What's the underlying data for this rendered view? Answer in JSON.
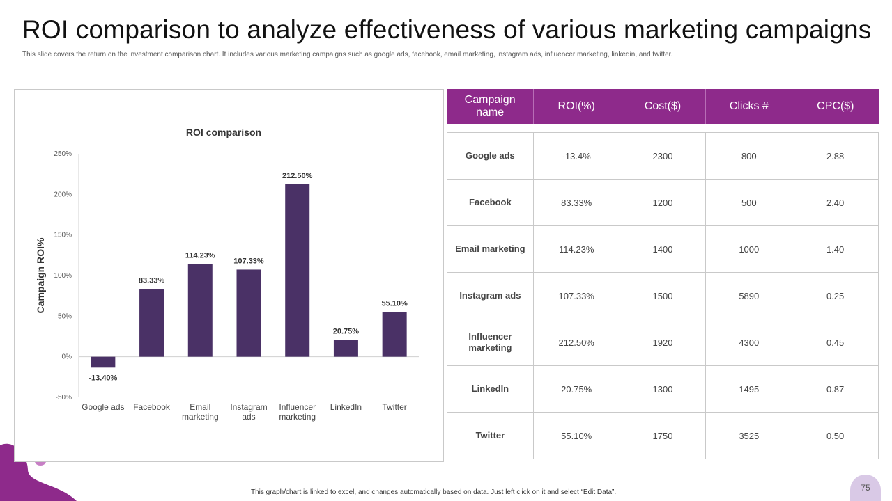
{
  "slide": {
    "title": "ROI comparison to analyze effectiveness of various marketing campaigns",
    "subtitle": "This slide covers the return on the investment comparison chart. It includes various marketing campaigns such as google ads, facebook, email marketing, instagram ads, influencer marketing, linkedin, and twitter.",
    "footer_note": "This graph/chart is linked to excel, and changes automatically based on data. Just left click on it and select “Edit Data”.",
    "page_number": "75"
  },
  "colors": {
    "bar": "#4a3166",
    "header_bg": "#8e2a8b",
    "accent_purple": "#8e2a8b",
    "page_badge": "#d9c9e6"
  },
  "chart_data": {
    "type": "bar",
    "title": "ROI comparison",
    "xlabel": "",
    "ylabel": "Campaign ROI%",
    "categories": [
      [
        "Google ads"
      ],
      [
        "Facebook"
      ],
      [
        "Email",
        "marketing"
      ],
      [
        "Instagram",
        "ads"
      ],
      [
        "Influencer",
        "marketing"
      ],
      [
        "LinkedIn"
      ],
      [
        "Twitter"
      ]
    ],
    "values": [
      -13.4,
      83.33,
      114.23,
      107.33,
      212.5,
      20.75,
      55.1
    ],
    "data_labels": [
      "-13.40%",
      "83.33%",
      "114.23%",
      "107.33%",
      "212.50%",
      "20.75%",
      "55.10%"
    ],
    "y_ticks": [
      250,
      200,
      150,
      100,
      50,
      0,
      -50
    ],
    "y_tick_labels": [
      "250%",
      "200%",
      "150%",
      "100%",
      "50%",
      "0%",
      "-50%"
    ],
    "ylim": [
      -50,
      250
    ],
    "grid": false,
    "legend": "none"
  },
  "table": {
    "headers": [
      "Campaign name",
      "ROI(%)",
      "Cost($)",
      "Clicks #",
      "CPC($)"
    ],
    "rows": [
      [
        "Google ads",
        "-13.4%",
        "2300",
        "800",
        "2.88"
      ],
      [
        "Facebook",
        "83.33%",
        "1200",
        "500",
        "2.40"
      ],
      [
        "Email marketing",
        "114.23%",
        "1400",
        "1000",
        "1.40"
      ],
      [
        "Instagram ads",
        "107.33%",
        "1500",
        "5890",
        "0.25"
      ],
      [
        "Influencer marketing",
        "212.50%",
        "1920",
        "4300",
        "0.45"
      ],
      [
        "LinkedIn",
        "20.75%",
        "1300",
        "1495",
        "0.87"
      ],
      [
        "Twitter",
        "55.10%",
        "1750",
        "3525",
        "0.50"
      ]
    ]
  }
}
